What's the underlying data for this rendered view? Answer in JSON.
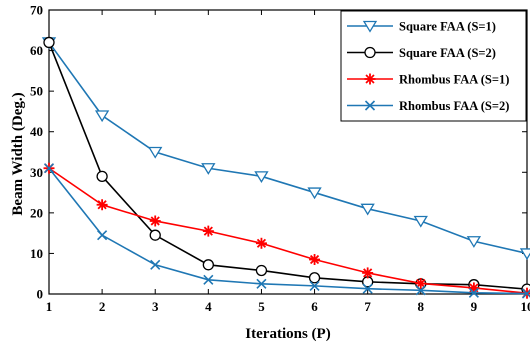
{
  "chart_data": {
    "type": "line",
    "title": "",
    "xlabel": "Iterations (P)",
    "ylabel": "Beam Width (Deg.)",
    "x": [
      1,
      2,
      3,
      4,
      5,
      6,
      7,
      8,
      9,
      10
    ],
    "x_ticks": [
      "1",
      "2",
      "3",
      "4",
      "5",
      "6",
      "7",
      "8",
      "9",
      "10"
    ],
    "y_ticks": [
      "0",
      "10",
      "20",
      "30",
      "40",
      "50",
      "60",
      "70"
    ],
    "xlim": [
      1,
      10
    ],
    "ylim": [
      0,
      70
    ],
    "grid": false,
    "legend_position": "top-right",
    "series": [
      {
        "name": "Square FAA (S=1)",
        "color": "#1f77b4",
        "marker": "triangle-down",
        "values": [
          62,
          44,
          35,
          31,
          29,
          25,
          21,
          18,
          13,
          10
        ]
      },
      {
        "name": "Square FAA (S=2)",
        "color": "#000000",
        "marker": "circle",
        "values": [
          62,
          29,
          14.5,
          7.2,
          5.8,
          4,
          3,
          2.5,
          2.3,
          1.2
        ]
      },
      {
        "name": "Rhombus FAA (S=1)",
        "color": "#ff0000",
        "marker": "star",
        "values": [
          31,
          22,
          18,
          15.5,
          12.5,
          8.5,
          5.2,
          2.6,
          1.5,
          0.2
        ]
      },
      {
        "name": "Rhombus FAA (S=2)",
        "color": "#1f77b4",
        "marker": "x",
        "values": [
          31,
          14.5,
          7.2,
          3.5,
          2.5,
          2,
          1.3,
          0.9,
          0.3,
          0.1
        ]
      }
    ]
  }
}
